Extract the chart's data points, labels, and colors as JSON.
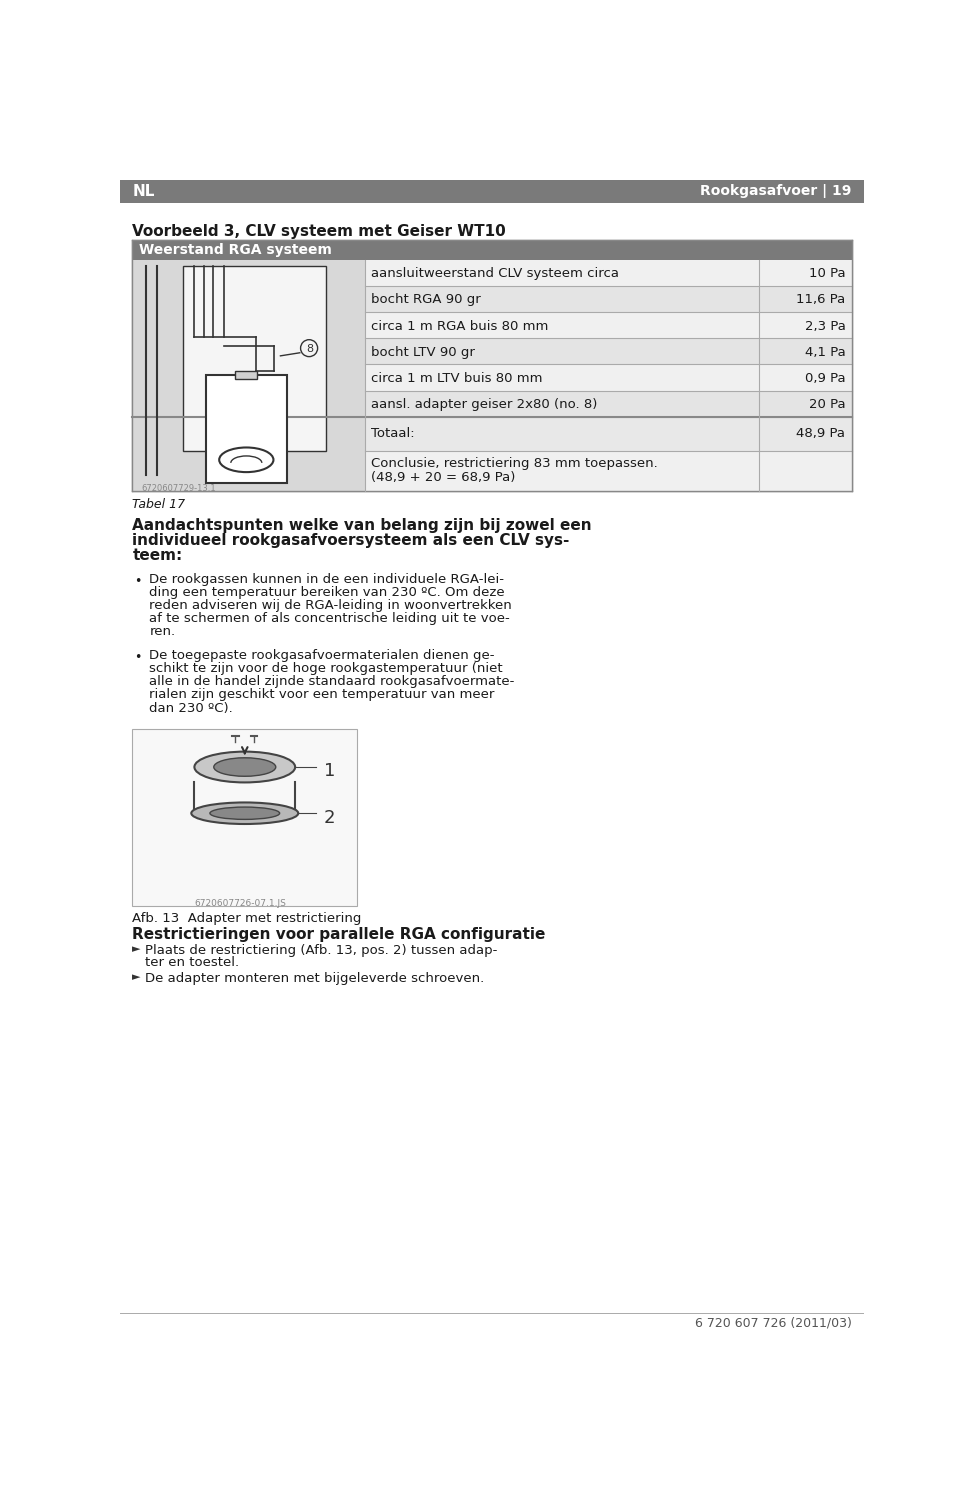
{
  "page_bg": "#ffffff",
  "header_bg": "#7a7a7a",
  "header_text_left": "NL",
  "header_text_right": "Rookgasafvoer | 19",
  "header_text_color": "#ffffff",
  "title_bold": "Voorbeeld 3, CLV systeem met Geiser WT10",
  "table_header_bg": "#7a7a7a",
  "table_header_text": "Weerstand RGA systeem",
  "table_header_text_color": "#ffffff",
  "table_bg": "#d8d8d8",
  "table_row_bg_light": "#e8e8e8",
  "table_row_bg_dark": "#d0d0d0",
  "table_rows": [
    [
      "aansluitweerstand CLV systeem circa",
      "10 Pa"
    ],
    [
      "bocht RGA 90 gr",
      "11,6 Pa"
    ],
    [
      "circa 1 m RGA buis 80 mm",
      "2,3 Pa"
    ],
    [
      "bocht LTV 90 gr",
      "4,1 Pa"
    ],
    [
      "circa 1 m LTV buis 80 mm",
      "0,9 Pa"
    ],
    [
      "aansl. adapter geiser 2x80 (no. 8)",
      "20 Pa"
    ]
  ],
  "totaal_label": "Totaal:",
  "totaal_value": "48,9 Pa",
  "conclusie_line1": "Conclusie, restrictiering 83 mm toepassen.",
  "conclusie_line2": "(48,9 + 20 = 68,9 Pa)",
  "tabel_ref": "Tabel 17",
  "image_code1": "6720607729-13.1",
  "image_code2": "6720607726-07.1.JS",
  "section_title_line1": "Aandachtspunten welke van belang zijn bij zowel een",
  "section_title_line2": "individueel rookgasafvoersysteem als een CLV sys-",
  "section_title_line3": "teem:",
  "bullet1_lines": [
    "De rookgassen kunnen in de een individuele RGA-lei-",
    "ding een temperatuur bereiken van 230 ºC. Om deze",
    "reden adviseren wij de RGA-leiding in woonvertrekken",
    "af te schermen of als concentrische leiding uit te voe-",
    "ren."
  ],
  "bullet2_lines": [
    "De toegepaste rookgasafvoermaterialen dienen ge-",
    "schikt te zijn voor de hoge rookgastemperatuur (niet",
    "alle in de handel zijnde standaard rookgasafvoermate-",
    "rialen zijn geschikt voor een temperatuur van meer",
    "dan 230 ºC)."
  ],
  "afb_caption": "Afb. 13  Adapter met restrictiering",
  "section2_title": "Restrictieringen voor parallele RGA configuratie",
  "instr1_line1": "Plaats de restrictiering (Afb. 13, pos. 2) tussen adap-",
  "instr1_line2": "ter en toestel.",
  "instr2": "De adapter monteren met bijgeleverde schroeven.",
  "footer_text": "6 720 607 726 (2011/03)",
  "text_color": "#1a1a1a",
  "gray_color": "#555555",
  "line_color": "#aaaaaa"
}
